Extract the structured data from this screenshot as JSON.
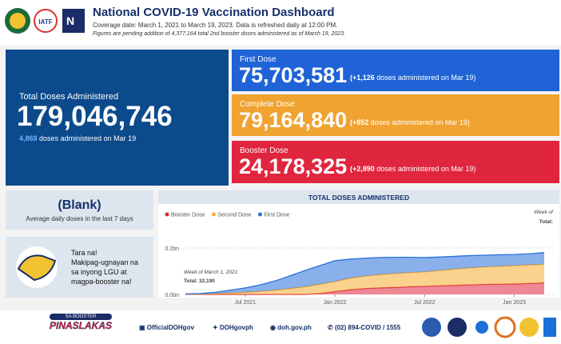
{
  "header": {
    "title": "National COVID-19 Vaccination Dashboard",
    "coverage": "Coverage date: March 1, 2021 to March 19, 2023. Data is refreshed daily at 12:00 PM.",
    "note": "Figures are pending addition of 4,377,164 total 2nd booster doses administered as of March 19, 2023.",
    "logos": [
      "IATF",
      "N"
    ]
  },
  "total": {
    "label": "Total Doses Administered",
    "value": "179,046,746",
    "daily": "4,868",
    "daily_text": "doses administered on Mar 19"
  },
  "doses": [
    {
      "label": "First Dose",
      "value": "75,703,581",
      "increment": "(+1,126",
      "text": "doses administered on Mar 19)"
    },
    {
      "label": "Complete Dose",
      "value": "79,164,840",
      "increment": "(+852",
      "text": "doses administered on Mar 19)"
    },
    {
      "label": "Booster Dose",
      "value": "24,178,325",
      "increment": "(+2,890",
      "text": "doses administered on Mar 19)"
    }
  ],
  "average": {
    "value": "(Blank)",
    "label": "Average daily doses in the last 7 days"
  },
  "promo": {
    "lines": [
      "Tara na!",
      "Makipag-ugnayan na",
      "sa inyong LGU at",
      "magpa-booster na!"
    ]
  },
  "chart_data": {
    "type": "area",
    "stacked": true,
    "title": "TOTAL DOSES ADMINISTERED",
    "legend": "top-left",
    "x": [
      "2021-03",
      "2021-04",
      "2021-05",
      "2021-06",
      "2021-07",
      "2021-08",
      "2021-09",
      "2021-10",
      "2021-11",
      "2021-12",
      "2022-01",
      "2022-02",
      "2022-03",
      "2022-04",
      "2022-05",
      "2022-06",
      "2022-07",
      "2022-08",
      "2022-09",
      "2022-10",
      "2022-11",
      "2022-12",
      "2023-01",
      "2023-02",
      "2023-03"
    ],
    "series": [
      {
        "name": "Booster Dose",
        "color": "#e0263e",
        "values": [
          0,
          0,
          0,
          0,
          0,
          0,
          0,
          0,
          0,
          0.004,
          0.012,
          0.02,
          0.025,
          0.028,
          0.03,
          0.033,
          0.035,
          0.037,
          0.039,
          0.041,
          0.043,
          0.044,
          0.045,
          0.047,
          0.05
        ]
      },
      {
        "name": "Second Dose",
        "color": "#f5ad32",
        "values": [
          0.0005,
          0.001,
          0.003,
          0.006,
          0.009,
          0.013,
          0.018,
          0.025,
          0.033,
          0.04,
          0.043,
          0.05,
          0.054,
          0.057,
          0.06,
          0.061,
          0.062,
          0.066,
          0.07,
          0.073,
          0.075,
          0.077,
          0.079,
          0.08,
          0.08
        ]
      },
      {
        "name": "First Dose",
        "color": "#2a6fdb",
        "values": [
          0.001,
          0.003,
          0.006,
          0.012,
          0.019,
          0.028,
          0.04,
          0.055,
          0.07,
          0.08,
          0.09,
          0.082,
          0.077,
          0.074,
          0.07,
          0.066,
          0.062,
          0.058,
          0.055,
          0.053,
          0.051,
          0.05,
          0.048,
          0.048,
          0.05
        ]
      }
    ],
    "xlim": [
      "2021-03",
      "2023-03"
    ],
    "xticks": [
      {
        "value": "2021-07",
        "label": "Jul 2021"
      },
      {
        "value": "2022-01",
        "label": "Jan 2022"
      },
      {
        "value": "2022-07",
        "label": "Jul 2022"
      },
      {
        "value": "2023-01",
        "label": "Jan 2023"
      }
    ],
    "ylim": [
      0,
      0.26
    ],
    "yticks": [
      {
        "value": 0,
        "label": "0.0bn"
      },
      {
        "value": 0.2,
        "label": "0.2bn"
      }
    ],
    "grid": true,
    "annotations": [
      "Week of March 1, 2021",
      "Total: 32,190",
      "Week of",
      "Total:"
    ]
  },
  "footer": {
    "logo": [
      "SA BOOSTER",
      "PINASLAKAS"
    ],
    "links": [
      "OfficialDOHgov",
      "DOHgovph",
      "doh.gov.ph",
      "(02) 894-COVID / 1555"
    ]
  }
}
